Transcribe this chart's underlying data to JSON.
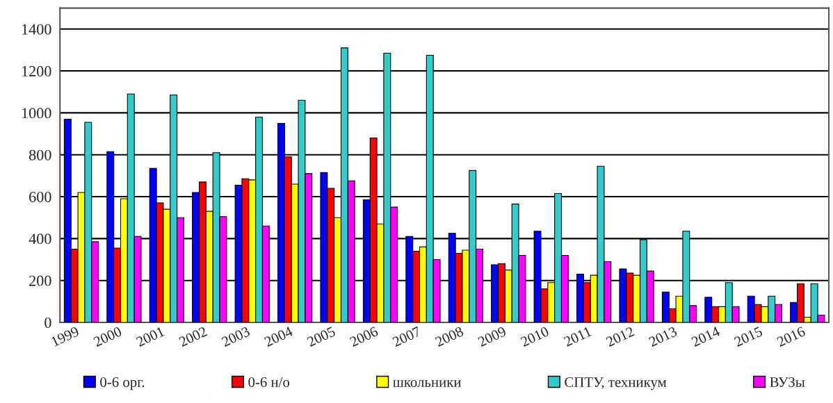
{
  "chart_data": {
    "type": "bar",
    "categories": [
      "1999",
      "2000",
      "2001",
      "2002",
      "2003",
      "2004",
      "2005",
      "2006",
      "2007",
      "2008",
      "2009",
      "2010",
      "2011",
      "2012",
      "2013",
      "2014",
      "2015",
      "2016"
    ],
    "series": [
      {
        "name": "0-6 орг.",
        "color": "#0000ff",
        "values": [
          970,
          815,
          735,
          620,
          655,
          950,
          715,
          585,
          410,
          425,
          275,
          435,
          230,
          255,
          145,
          120,
          125,
          95
        ]
      },
      {
        "name": "0-6 н/о",
        "color": "#ff0000",
        "values": [
          350,
          355,
          570,
          670,
          685,
          790,
          640,
          880,
          340,
          330,
          280,
          160,
          190,
          235,
          65,
          75,
          85,
          185
        ]
      },
      {
        "name": "школьники",
        "color": "#ffff00",
        "values": [
          620,
          590,
          540,
          530,
          680,
          660,
          500,
          470,
          360,
          345,
          250,
          190,
          225,
          225,
          125,
          75,
          75,
          25
        ]
      },
      {
        "name": "СПТУ, техникум",
        "color": "#33cccc",
        "values": [
          955,
          1090,
          1085,
          810,
          980,
          1060,
          1310,
          1285,
          1275,
          725,
          565,
          615,
          745,
          395,
          435,
          190,
          125,
          185
        ]
      },
      {
        "name": "ВУЗы",
        "color": "#ff00ff",
        "values": [
          385,
          410,
          500,
          505,
          460,
          710,
          675,
          550,
          300,
          350,
          320,
          320,
          290,
          245,
          80,
          75,
          85,
          35
        ]
      }
    ],
    "ylim": [
      0,
      1500
    ],
    "yticks": [
      0,
      200,
      400,
      600,
      800,
      1000,
      1200,
      1400
    ],
    "grid": "y",
    "legend": "bottom"
  }
}
